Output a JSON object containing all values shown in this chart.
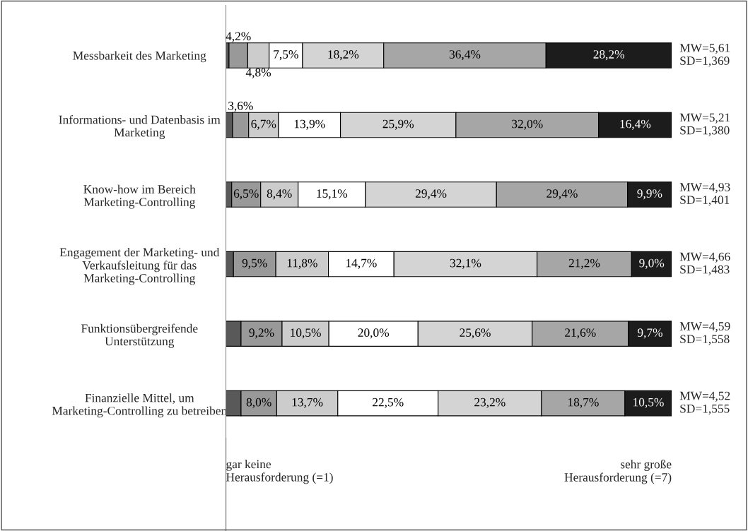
{
  "chart_data": {
    "type": "bar",
    "orientation": "horizontal",
    "stacked": true,
    "xlim": [
      0,
      100
    ],
    "tick_labels": false,
    "categories": [
      "Messbarkeit des Marketing",
      "Informations- und Datenbasis im\nMarketing",
      "Know-how im Bereich\nMarketing-Controlling",
      "Engagement der Marketing- und\nVerkaufsleitung für das\nMarketing-Controlling",
      "Funktionsübergreifende\nUnterstützung",
      "Finanzielle Mittel, um\nMarketing-Controlling zu betreiben"
    ],
    "series": [
      {
        "color": "#595959",
        "values": [
          0.7,
          1.5,
          1.3,
          1.7,
          3.4,
          3.4
        ],
        "value_labels": [
          null,
          null,
          null,
          null,
          null,
          null
        ]
      },
      {
        "color": "#999999",
        "values": [
          4.2,
          3.6,
          6.5,
          9.5,
          9.2,
          8.0
        ],
        "value_labels": [
          "4,2%",
          "3,6%",
          "6,5%",
          "9,5%",
          "9,2%",
          "8,0%"
        ]
      },
      {
        "color": "#cccccc",
        "values": [
          4.8,
          6.7,
          8.4,
          11.8,
          10.5,
          13.7
        ],
        "value_labels": [
          "4,8%",
          "6,7%",
          "8,4%",
          "11,8%",
          "10,5%",
          "13,7%"
        ]
      },
      {
        "color": "#ffffff",
        "values": [
          7.5,
          13.9,
          15.1,
          14.7,
          20.0,
          22.5
        ],
        "value_labels": [
          "7,5%",
          "13,9%",
          "15,1%",
          "14,7%",
          "20,0%",
          "22,5%"
        ]
      },
      {
        "color": "#d4d4d4",
        "values": [
          18.2,
          25.9,
          29.4,
          32.1,
          25.6,
          23.2
        ],
        "value_labels": [
          "18,2%",
          "25,9%",
          "29,4%",
          "32,1%",
          "25,6%",
          "23,2%"
        ]
      },
      {
        "color": "#a6a6a6",
        "values": [
          36.4,
          32.0,
          29.4,
          21.2,
          21.6,
          18.7
        ],
        "value_labels": [
          "36,4%",
          "32,0%",
          "29,4%",
          "21,2%",
          "21,6%",
          "18,7%"
        ]
      },
      {
        "color": "#1c1c1c",
        "values": [
          28.2,
          16.4,
          9.9,
          9.0,
          9.7,
          10.5
        ],
        "value_labels": [
          "28,2%",
          "16,4%",
          "9,9%",
          "9,0%",
          "9,7%",
          "10,5%"
        ]
      }
    ],
    "annotations": [
      "MW=5,61\nSD=1,369",
      "MW=5,21\nSD=1,380",
      "MW=4,93\nSD=1,401",
      "MW=4,66\nSD=1,483",
      "MW=4,59\nSD=1,558",
      "MW=4,52\nSD=1,555",
      "gar keine\nHerausforderung (=1)",
      "sehr große\nHerausforderung (=7)"
    ]
  }
}
